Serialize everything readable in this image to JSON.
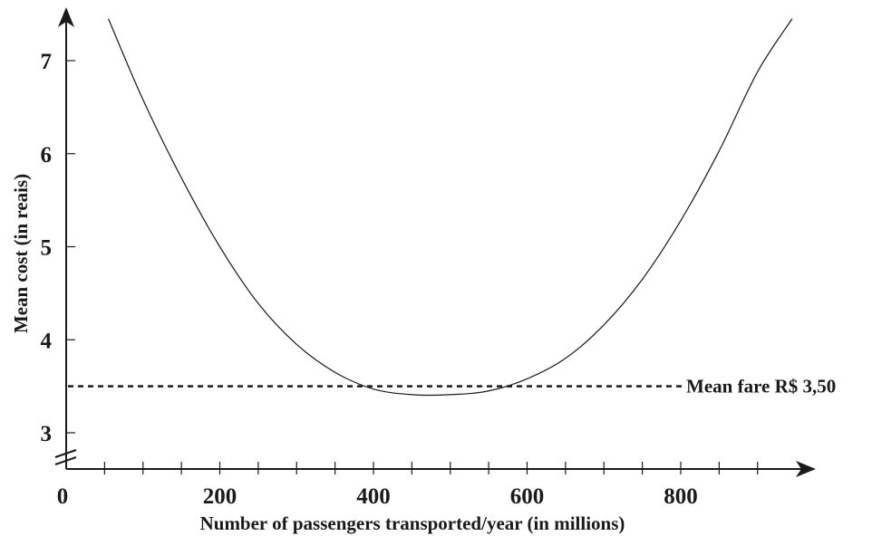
{
  "chart_data": {
    "type": "line",
    "xlabel": "Number of passengers transported/year (in millions)",
    "ylabel": "Mean cost (in reais)",
    "xlim": [
      0,
      950
    ],
    "ylim": [
      3,
      7.45
    ],
    "y_axis_break": true,
    "x_tick_values": [
      0,
      50,
      100,
      150,
      200,
      250,
      300,
      350,
      400,
      450,
      500,
      550,
      600,
      650,
      700,
      750,
      800,
      850,
      900
    ],
    "x_tick_labels": [
      "0",
      "200",
      "400",
      "600",
      "800"
    ],
    "x_tick_label_values": [
      0,
      200,
      400,
      600,
      800
    ],
    "y_tick_labels": [
      "3",
      "4",
      "5",
      "6",
      "7"
    ],
    "y_tick_values": [
      3,
      4,
      5,
      6,
      7
    ],
    "series": [
      {
        "x": [
          55,
          100,
          150,
          200,
          250,
          300,
          350,
          400,
          450,
          500,
          550,
          600,
          650,
          700,
          750,
          800,
          850,
          900,
          945
        ],
        "y": [
          7.45,
          6.58,
          5.74,
          5.0,
          4.39,
          3.95,
          3.65,
          3.47,
          3.41,
          3.41,
          3.45,
          3.58,
          3.8,
          4.16,
          4.65,
          5.28,
          6.03,
          6.88,
          7.45
        ]
      }
    ],
    "reference_line": {
      "y": 3.5,
      "label": "Mean fare R$ 3,50",
      "style": "dashed"
    },
    "grid": false,
    "legend": "none"
  }
}
